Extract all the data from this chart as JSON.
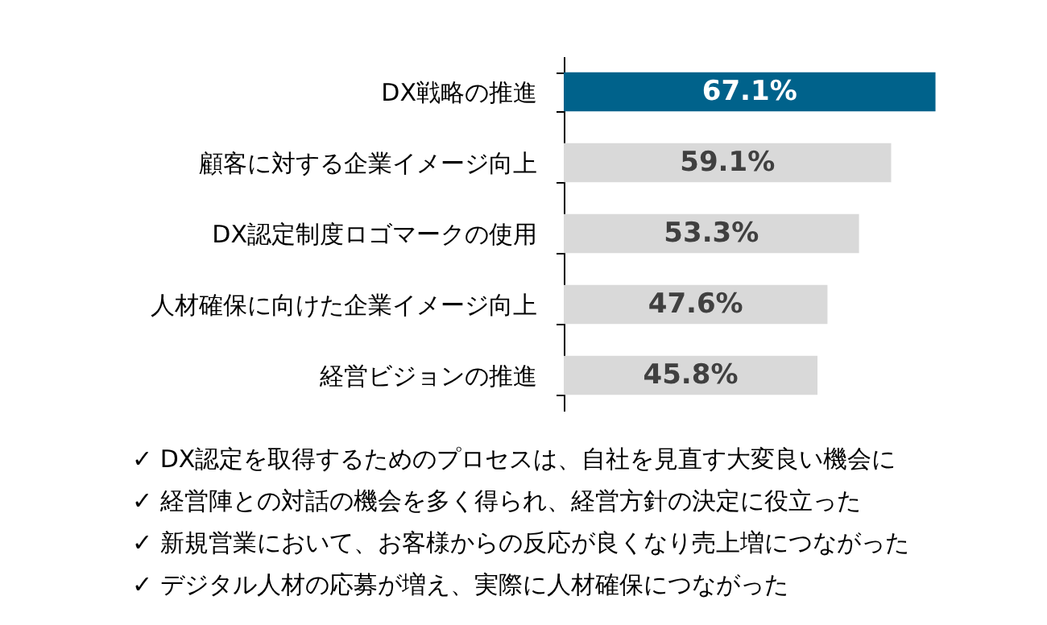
{
  "chart_data": {
    "type": "bar",
    "orientation": "horizontal",
    "categories": [
      "DX戦略の推進",
      "顧客に対する企業イメージ向上",
      "DX認定制度ロゴマークの使用",
      "人材確保に向けた企業イメージ向上",
      "経営ビジョンの推進"
    ],
    "values": [
      67.1,
      59.1,
      53.3,
      47.6,
      45.8
    ],
    "colors": [
      "#00628b",
      "#d9d9d9",
      "#d9d9d9",
      "#d9d9d9",
      "#d9d9d9"
    ],
    "value_labels": [
      "67.1%",
      "59.1%",
      "53.3%",
      "47.6%",
      "45.8%"
    ],
    "tick_labels": "y",
    "grid": false,
    "annotations": [
      "✓ DX認定を取得するためのプロセスは、自社を見直す大変良い機会に",
      "✓ 経営陣との対話の機会を多く得られ、経営方針の決定に役立った",
      "✓ 新規営業において、お客様からの反応が良くなり売上増につながった",
      "✓ デジタル人材の応募が増え、実際に人材確保につながった"
    ]
  }
}
